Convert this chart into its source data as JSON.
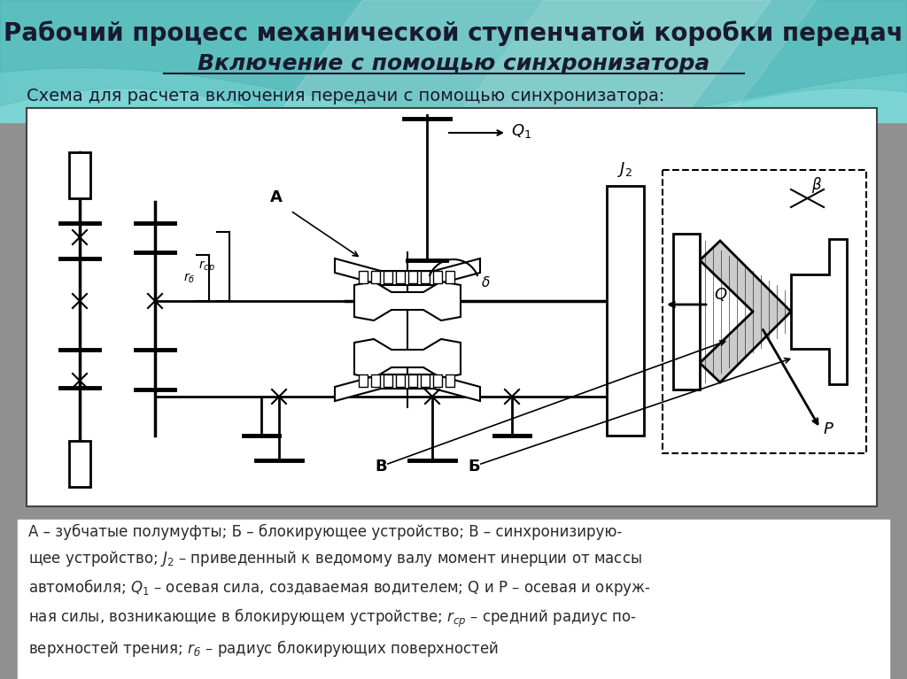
{
  "title_line1": "Рабочий процесс механической ступенчатой коробки передач",
  "title_line2": "Включение с помощью синхронизатора",
  "subtitle": "Схема для расчета включения передачи с помощью синхронизатора:",
  "bg_color_top": "#6ecfcf",
  "bg_color_slide": "#b0b0b0",
  "diagram_bg": "#ffffff",
  "title1_color": "#1a1a2e",
  "title2_color": "#1a1a2e",
  "subtitle_color": "#1a1a2e",
  "caption_color": "#2a2a2a"
}
